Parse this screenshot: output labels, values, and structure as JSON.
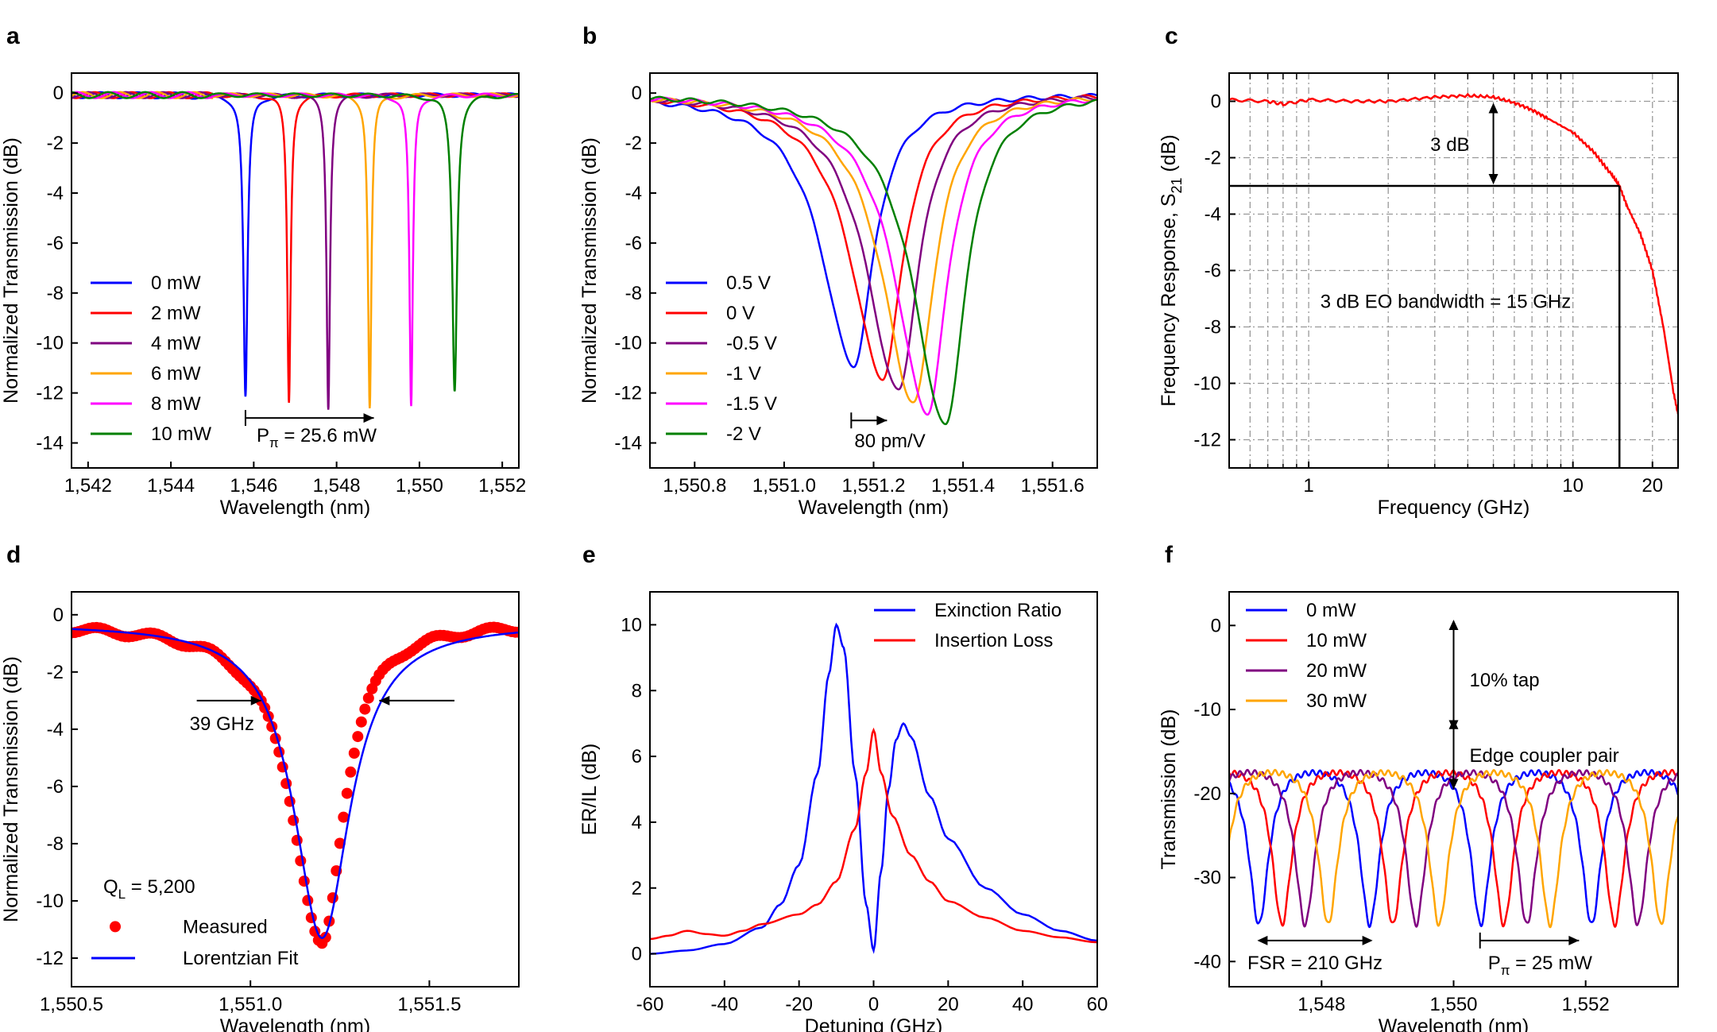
{
  "chart_data": [
    {
      "id": "a",
      "panel_label": "a",
      "type": "line",
      "xlabel": "Wavelength (nm)",
      "ylabel": "Normalized Transmission (dB)",
      "xlim": [
        1541.6,
        1552.4
      ],
      "ylim": [
        -15,
        0.8
      ],
      "xticks": [
        1542,
        1544,
        1546,
        1548,
        1550,
        1552
      ],
      "xtick_labels": [
        "1,542",
        "1,544",
        "1,546",
        "1,548",
        "1,550",
        "1,552"
      ],
      "yticks": [
        0,
        -2,
        -4,
        -6,
        -8,
        -10,
        -12,
        -14
      ],
      "ytick_labels": [
        "0",
        "-2",
        "-4",
        "-6",
        "-8",
        "-10",
        "-12",
        "-14"
      ],
      "series": [
        {
          "name": "0 mW",
          "color": "#0000ff",
          "center": 1545.8,
          "depth": -12.2,
          "width": 0.06,
          "baseline": -0.08
        },
        {
          "name": "2 mW",
          "color": "#ff0000",
          "center": 1546.85,
          "depth": -12.4,
          "width": 0.05,
          "baseline": -0.08
        },
        {
          "name": "4 mW",
          "color": "#800080",
          "center": 1547.8,
          "depth": -12.6,
          "width": 0.05,
          "baseline": -0.08
        },
        {
          "name": "6 mW",
          "color": "#ffa500",
          "center": 1548.8,
          "depth": -12.6,
          "width": 0.05,
          "baseline": -0.08
        },
        {
          "name": "8 mW",
          "color": "#ff00ff",
          "center": 1549.8,
          "depth": -12.6,
          "width": 0.05,
          "baseline": -0.08
        },
        {
          "name": "10 mW",
          "color": "#008000",
          "center": 1550.85,
          "depth": -11.9,
          "width": 0.07,
          "baseline": -0.08
        }
      ],
      "annotation": {
        "text": "P",
        "sub": "π",
        "rest": " = 25.6 mW",
        "x_start": 1545.8,
        "x_end": 1548.9,
        "y": -13.0
      }
    },
    {
      "id": "b",
      "panel_label": "b",
      "type": "line",
      "xlabel": "Wavelength (nm)",
      "ylabel": "Normalized Transmission (dB)",
      "xlim": [
        1550.7,
        1551.7
      ],
      "ylim": [
        -15,
        0.8
      ],
      "xticks": [
        1550.8,
        1551.0,
        1551.2,
        1551.4,
        1551.6
      ],
      "xtick_labels": [
        "1,550.8",
        "1,551.0",
        "1,551.2",
        "1,551.4",
        "1,551.6"
      ],
      "yticks": [
        0,
        -2,
        -4,
        -6,
        -8,
        -10,
        -12,
        -14
      ],
      "ytick_labels": [
        "0",
        "-2",
        "-4",
        "-6",
        "-8",
        "-10",
        "-12",
        "-14"
      ],
      "series": [
        {
          "name": "0.5 V",
          "color": "#0000ff",
          "center": 1551.155,
          "depth": -10.9
        },
        {
          "name": "0 V",
          "color": "#ff0000",
          "center": 1551.22,
          "depth": -11.4
        },
        {
          "name": "-0.5 V",
          "color": "#800080",
          "center": 1551.255,
          "depth": -11.9
        },
        {
          "name": "-1 V",
          "color": "#ffa500",
          "center": 1551.29,
          "depth": -12.4
        },
        {
          "name": "-1.5 V",
          "color": "#ff00ff",
          "center": 1551.32,
          "depth": -12.8
        },
        {
          "name": "-2 V",
          "color": "#008000",
          "center": 1551.36,
          "depth": -13.3
        }
      ],
      "annotation": {
        "text": "80 pm/V",
        "x_start": 1551.15,
        "x_end": 1551.23,
        "y": -13.1
      }
    },
    {
      "id": "c",
      "panel_label": "c",
      "type": "line",
      "xlabel": "Frequency (GHz)",
      "ylabel": "Frequency Response, S",
      "ylabel_sub": "21",
      "ylabel_tail": " (dB)",
      "xscale": "log",
      "xlim": [
        0.5,
        25
      ],
      "ylim": [
        -13,
        1
      ],
      "xticks": [
        1,
        10,
        20
      ],
      "xtick_labels": [
        "1",
        "10",
        "20"
      ],
      "yticks": [
        0,
        -2,
        -4,
        -6,
        -8,
        -10,
        -12
      ],
      "ytick_labels": [
        "0",
        "-2",
        "-4",
        "-6",
        "-8",
        "-10",
        "-12"
      ],
      "series": [
        {
          "name": "S21",
          "color": "#ff0000",
          "points": [
            [
              0.5,
              0.05
            ],
            [
              0.7,
              0.0
            ],
            [
              0.8,
              -0.1
            ],
            [
              1,
              0.05
            ],
            [
              1.5,
              0.0
            ],
            [
              2,
              0.0
            ],
            [
              3,
              0.15
            ],
            [
              4,
              0.2
            ],
            [
              5,
              0.15
            ],
            [
              6,
              -0.05
            ],
            [
              7,
              -0.3
            ],
            [
              8,
              -0.6
            ],
            [
              10,
              -1.1
            ],
            [
              12,
              -1.8
            ],
            [
              14,
              -2.6
            ],
            [
              15,
              -3.0
            ],
            [
              16,
              -3.7
            ],
            [
              18,
              -4.7
            ],
            [
              20,
              -6.0
            ],
            [
              22,
              -8.0
            ],
            [
              24,
              -10.3
            ],
            [
              25,
              -11.1
            ]
          ]
        }
      ],
      "bandwidth_ghz": 15,
      "level_db": -3,
      "annotations": [
        "3 dB",
        "3 dB EO bandwidth = 15 GHz"
      ]
    },
    {
      "id": "d",
      "panel_label": "d",
      "type": "line",
      "xlabel": "Wavelength (nm)",
      "ylabel": "Normalized Transmission (dB)",
      "xlim": [
        1550.5,
        1551.75
      ],
      "ylim": [
        -13,
        0.8
      ],
      "xticks": [
        1550.5,
        1551.0,
        1551.5
      ],
      "xtick_labels": [
        "1,550.5",
        "1,551.0",
        "1,551.5"
      ],
      "yticks": [
        0,
        -2,
        -4,
        -6,
        -8,
        -10,
        -12
      ],
      "ytick_labels": [
        "0",
        "-2",
        "-4",
        "-6",
        "-8",
        "-10",
        "-12"
      ],
      "series": [
        {
          "name": "Measured",
          "color": "#ff0000",
          "center": 1551.2,
          "depth": -11.6,
          "width": 0.085
        },
        {
          "name": "Lorentzian Fit",
          "color": "#0000ff",
          "center": 1551.2,
          "depth": -11.3,
          "width": 0.095
        }
      ],
      "annotations": [
        "39 GHz",
        "Q",
        "L",
        " = 5,200"
      ]
    },
    {
      "id": "e",
      "panel_label": "e",
      "type": "line",
      "xlabel": "Detuning (GHz)",
      "ylabel": "ER/IL (dB)",
      "xlim": [
        -60,
        60
      ],
      "ylim": [
        -1,
        11
      ],
      "xticks": [
        -60,
        -40,
        -20,
        0,
        20,
        40,
        60
      ],
      "xtick_labels": [
        "-60",
        "-40",
        "-20",
        "0",
        "20",
        "40",
        "60"
      ],
      "yticks": [
        0,
        2,
        4,
        6,
        8,
        10
      ],
      "ytick_labels": [
        "0",
        "2",
        "4",
        "6",
        "8",
        "10"
      ],
      "series": [
        {
          "name": "Exinction Ratio",
          "color": "#0000ff",
          "points": [
            [
              -60,
              0.0
            ],
            [
              -50,
              0.1
            ],
            [
              -40,
              0.3
            ],
            [
              -30,
              0.8
            ],
            [
              -25,
              1.5
            ],
            [
              -20,
              2.7
            ],
            [
              -15,
              5.5
            ],
            [
              -12,
              8.5
            ],
            [
              -10,
              10.0
            ],
            [
              -8,
              9.3
            ],
            [
              -5,
              5.5
            ],
            [
              -2,
              1.5
            ],
            [
              0,
              0.1
            ],
            [
              2,
              2.5
            ],
            [
              4,
              5.0
            ],
            [
              6,
              6.5
            ],
            [
              8,
              7.0
            ],
            [
              10,
              6.6
            ],
            [
              15,
              4.8
            ],
            [
              20,
              3.5
            ],
            [
              30,
              2.0
            ],
            [
              40,
              1.2
            ],
            [
              50,
              0.7
            ],
            [
              60,
              0.4
            ]
          ]
        },
        {
          "name": "Insertion Loss",
          "color": "#ff0000",
          "points": [
            [
              -60,
              0.45
            ],
            [
              -55,
              0.55
            ],
            [
              -50,
              0.7
            ],
            [
              -45,
              0.6
            ],
            [
              -40,
              0.55
            ],
            [
              -35,
              0.7
            ],
            [
              -30,
              0.9
            ],
            [
              -20,
              1.2
            ],
            [
              -15,
              1.5
            ],
            [
              -10,
              2.2
            ],
            [
              -5,
              3.8
            ],
            [
              -2,
              5.5
            ],
            [
              0,
              6.8
            ],
            [
              2,
              5.5
            ],
            [
              5,
              4.2
            ],
            [
              10,
              3.0
            ],
            [
              15,
              2.2
            ],
            [
              20,
              1.6
            ],
            [
              30,
              1.1
            ],
            [
              40,
              0.7
            ],
            [
              50,
              0.5
            ],
            [
              60,
              0.35
            ]
          ]
        }
      ]
    },
    {
      "id": "f",
      "panel_label": "f",
      "type": "line",
      "xlabel": "Wavelength (nm)",
      "ylabel": "Transmission (dB)",
      "xlim": [
        1546.6,
        1553.4
      ],
      "ylim": [
        -43,
        4
      ],
      "xticks": [
        1548,
        1550,
        1552
      ],
      "xtick_labels": [
        "1,548",
        "1,550",
        "1,552"
      ],
      "yticks": [
        0,
        -10,
        -20,
        -30,
        -40
      ],
      "ytick_labels": [
        "0",
        "-10",
        "-20",
        "-30",
        "-40"
      ],
      "fsr_nm": 1.68,
      "baseline": -15.5,
      "dip_floor": -35,
      "series": [
        {
          "name": "0 mW",
          "color": "#0000ff",
          "first_dip": 1547.05
        },
        {
          "name": "10 mW",
          "color": "#ff0000",
          "first_dip": 1547.4
        },
        {
          "name": "20 mW",
          "color": "#800080",
          "first_dip": 1547.75
        },
        {
          "name": "30 mW",
          "color": "#ffa500",
          "first_dip": 1548.1
        }
      ],
      "annotations": [
        "10% tap",
        "Edge coupler pair",
        "FSR = 210 GHz",
        "P",
        "π",
        " = 25 mW"
      ]
    }
  ]
}
